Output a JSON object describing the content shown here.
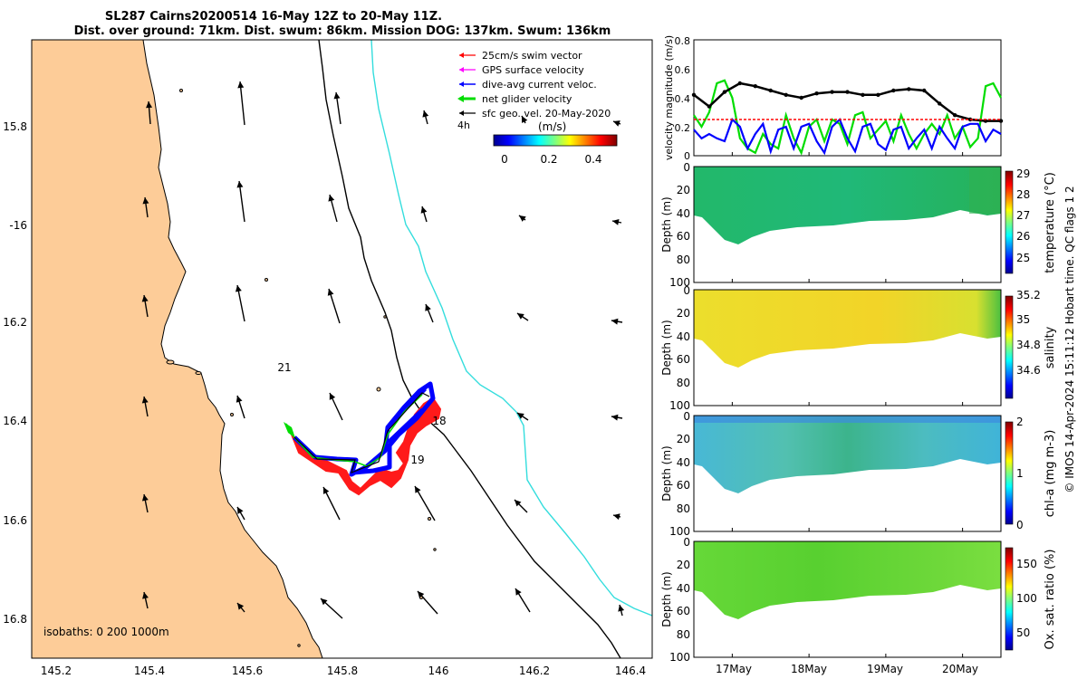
{
  "title": {
    "line1": "SL287 Cairns20200514 16-May 12Z to 20-May 11Z.",
    "line2": "Dist. over ground: 71km. Dist. swum: 86km. Mission DOG: 137km. Swum: 136km"
  },
  "map": {
    "lon_ticks": [
      "145.2",
      "145.4",
      "145.6",
      "145.8",
      "146",
      "146.2",
      "146.4"
    ],
    "lat_ticks": [
      "15.8",
      "-16",
      "16.2",
      "16.4",
      "16.6",
      "16.8"
    ],
    "isobaths": "isobaths: 0   200  1000m",
    "day_labels": [
      "21",
      "18",
      "19"
    ],
    "legend": [
      {
        "label": "25cm/s swim vector",
        "color": "#ff0000"
      },
      {
        "label": "GPS surface velocity",
        "color": "#ff00ff"
      },
      {
        "label": "dive-avg current veloc.",
        "color": "#0000ff"
      },
      {
        "label": "net glider velocity",
        "color": "#00dd00"
      },
      {
        "label": "sfc geo. vel. 20-May-2020",
        "color": "#000000"
      }
    ],
    "legend_4h": "4h",
    "colorbar_label": "(m/s)",
    "colorbar_ticks": [
      "0",
      "0.2",
      "0.4"
    ],
    "colors": {
      "land": "#fdcc98",
      "isobath_200": "#000000",
      "isobath_1000": "#33dddd"
    }
  },
  "chart_data": [
    {
      "type": "line",
      "ylabel": "velocity magnitude (m/s)",
      "ylim": [
        0,
        0.8
      ],
      "yticks": [
        "0",
        "0.2",
        "0.4",
        "0.6",
        "0.8"
      ],
      "xlim": [
        16.5,
        20.5
      ],
      "series": [
        {
          "name": "net glider velocity",
          "color": "#00dd00",
          "x": [
            16.5,
            16.6,
            16.7,
            16.8,
            16.9,
            17.0,
            17.1,
            17.2,
            17.3,
            17.4,
            17.5,
            17.6,
            17.7,
            17.8,
            17.9,
            18.0,
            18.1,
            18.2,
            18.3,
            18.4,
            18.5,
            18.6,
            18.7,
            18.8,
            18.9,
            19.0,
            19.1,
            19.2,
            19.3,
            19.4,
            19.5,
            19.6,
            19.7,
            19.8,
            19.9,
            20.0,
            20.1,
            20.2,
            20.3,
            20.4,
            20.5
          ],
          "y": [
            0.28,
            0.2,
            0.3,
            0.5,
            0.52,
            0.4,
            0.12,
            0.05,
            0.02,
            0.15,
            0.08,
            0.05,
            0.28,
            0.12,
            0.02,
            0.2,
            0.25,
            0.1,
            0.25,
            0.22,
            0.08,
            0.28,
            0.3,
            0.12,
            0.18,
            0.24,
            0.1,
            0.28,
            0.15,
            0.05,
            0.15,
            0.22,
            0.15,
            0.28,
            0.12,
            0.2,
            0.06,
            0.12,
            0.48,
            0.5,
            0.4
          ]
        },
        {
          "name": "dive-avg current veloc.",
          "color": "#0000ff",
          "x": [
            16.5,
            16.6,
            16.7,
            16.8,
            16.9,
            17.0,
            17.1,
            17.2,
            17.3,
            17.4,
            17.5,
            17.6,
            17.7,
            17.8,
            17.9,
            18.0,
            18.1,
            18.2,
            18.3,
            18.4,
            18.5,
            18.6,
            18.7,
            18.8,
            18.9,
            19.0,
            19.1,
            19.2,
            19.3,
            19.4,
            19.5,
            19.6,
            19.7,
            19.8,
            19.9,
            20.0,
            20.1,
            20.2,
            20.3,
            20.4,
            20.5
          ],
          "y": [
            0.18,
            0.12,
            0.15,
            0.12,
            0.1,
            0.25,
            0.2,
            0.05,
            0.15,
            0.22,
            0.03,
            0.18,
            0.2,
            0.05,
            0.2,
            0.22,
            0.1,
            0.02,
            0.2,
            0.25,
            0.12,
            0.03,
            0.2,
            0.22,
            0.08,
            0.04,
            0.18,
            0.2,
            0.05,
            0.12,
            0.18,
            0.05,
            0.2,
            0.12,
            0.05,
            0.2,
            0.22,
            0.22,
            0.1,
            0.18,
            0.15
          ]
        },
        {
          "name": "sfc geo. vel.",
          "color": "#000000",
          "x": [
            16.5,
            16.7,
            16.9,
            17.1,
            17.3,
            17.5,
            17.7,
            17.9,
            18.1,
            18.3,
            18.5,
            18.7,
            18.9,
            19.1,
            19.3,
            19.5,
            19.7,
            19.9,
            20.1,
            20.3,
            20.5
          ],
          "y": [
            0.42,
            0.34,
            0.44,
            0.5,
            0.48,
            0.45,
            0.42,
            0.4,
            0.43,
            0.44,
            0.44,
            0.42,
            0.42,
            0.45,
            0.46,
            0.45,
            0.36,
            0.28,
            0.25,
            0.24,
            0.24
          ]
        },
        {
          "name": "25cm/s swim vector",
          "color": "#ff0000",
          "x": [
            16.5,
            20.5
          ],
          "y": [
            0.25,
            0.25
          ]
        }
      ]
    },
    {
      "type": "heatmap",
      "ylabel": "Depth (m)",
      "ylim": [
        0,
        100
      ],
      "yticks": [
        "0",
        "20",
        "40",
        "60",
        "80",
        "100"
      ],
      "cbar_label": "temperature (°C)",
      "cbar_ticks": [
        "25",
        "26",
        "27",
        "28",
        "29"
      ],
      "cbar_range": [
        24.3,
        29.1
      ]
    },
    {
      "type": "heatmap",
      "ylabel": "Depth (m)",
      "ylim": [
        0,
        100
      ],
      "yticks": [
        "0",
        "20",
        "40",
        "60",
        "80",
        "100"
      ],
      "cbar_label": "salinity",
      "cbar_ticks": [
        "34.6",
        "34.8",
        "35",
        "35.2"
      ],
      "cbar_range": [
        34.5,
        35.3
      ]
    },
    {
      "type": "heatmap",
      "ylabel": "Depth (m)",
      "ylim": [
        0,
        100
      ],
      "yticks": [
        "0",
        "20",
        "40",
        "60",
        "80",
        "100"
      ],
      "cbar_label": "chl-a (mg m-3)",
      "cbar_ticks": [
        "0",
        "1",
        "2"
      ],
      "cbar_range": [
        0,
        2
      ]
    },
    {
      "type": "heatmap",
      "ylabel": "Depth (m)",
      "ylim": [
        0,
        100
      ],
      "yticks": [
        "0",
        "20",
        "40",
        "60",
        "80",
        "100"
      ],
      "cbar_label": "Ox. sat. ratio (%)",
      "cbar_ticks": [
        "50",
        "100",
        "150"
      ],
      "cbar_range": [
        30,
        175
      ]
    }
  ],
  "time_axis": {
    "ticks": [
      "17May",
      "18May",
      "19May",
      "20May"
    ],
    "values": [
      17,
      18,
      19,
      20
    ]
  },
  "credit": "© IMOS 14-Apr-2024 15:11:12 Hobart time. QC flags 1  2"
}
